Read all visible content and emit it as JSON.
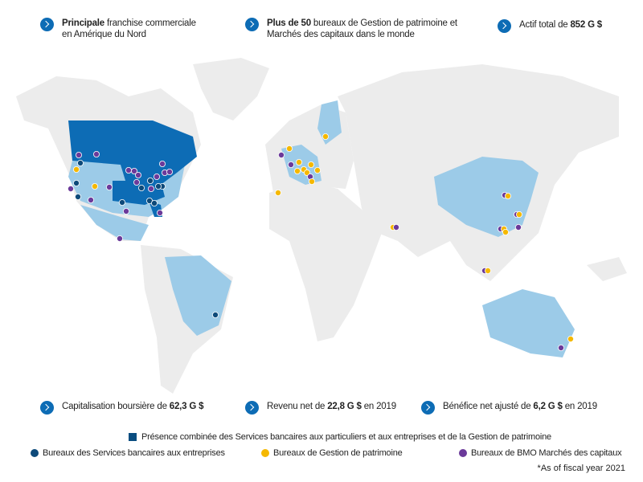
{
  "stats": [
    {
      "bold": "Principale",
      "text": " franchise commerciale en Amérique du Nord"
    },
    {
      "bold": "Plus de 50",
      "text": " bureaux de Gestion de patrimoine et Marchés des capitaux dans le monde"
    },
    {
      "pre": "Actif total de ",
      "bold": "852 G $"
    },
    {
      "pre": "Capitalisation boursière de ",
      "bold": "62,3 G $"
    },
    {
      "pre": "Revenu net de ",
      "bold": "22,8 G $",
      "text": " en 2019"
    },
    {
      "pre": "Bénéfice net ajusté de ",
      "bold": "6,2 G $",
      "text": " en 2019"
    }
  ],
  "legend": {
    "combined": "Présence combinée des Services bancaires aux particuliers et aux entreprises et de la Gestion de patrimoine",
    "commercial": "Bureaux des Services bancaires aux entreprises",
    "wealth": "Bureaux de Gestion de patrimoine",
    "capital": "Bureaux de BMO Marchés des capitaux"
  },
  "colors": {
    "accent": "#0d6cb5",
    "combined": "#0a4d80",
    "commercial": "#0d4a7a",
    "wealth": "#f5b800",
    "capital": "#6b3a9a",
    "presence": "#9ccbe8",
    "land": "#ececec"
  },
  "note": "*As of fiscal year 2021"
}
